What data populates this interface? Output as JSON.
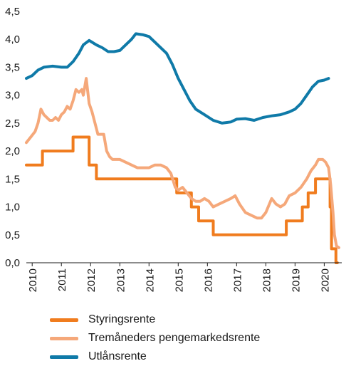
{
  "chart_data": {
    "type": "line",
    "title": "",
    "xlabel": "",
    "ylabel": "",
    "ylim": [
      0,
      4.5
    ],
    "xlim": [
      2009.8,
      2020.6
    ],
    "grid": false,
    "legend_position": "bottom",
    "y_ticks": [
      "0,0",
      "0,5",
      "1,0",
      "1,5",
      "2,0",
      "2,5",
      "3,0",
      "3,5",
      "4,0",
      "4,5"
    ],
    "x_ticks": [
      "2010",
      "2011",
      "2012",
      "2013",
      "2014",
      "2015",
      "2016",
      "2017",
      "2018",
      "2019",
      "2020"
    ],
    "series": [
      {
        "name": "Styringsrente",
        "color": "#f07c1e",
        "step": true,
        "points": [
          [
            2009.8,
            1.75
          ],
          [
            2010.35,
            2.0
          ],
          [
            2011.4,
            2.25
          ],
          [
            2011.95,
            1.75
          ],
          [
            2012.2,
            1.5
          ],
          [
            2014.95,
            1.25
          ],
          [
            2015.45,
            1.0
          ],
          [
            2015.7,
            0.75
          ],
          [
            2016.2,
            0.5
          ],
          [
            2018.7,
            0.75
          ],
          [
            2019.25,
            1.0
          ],
          [
            2019.45,
            1.25
          ],
          [
            2019.7,
            1.5
          ],
          [
            2020.2,
            1.0
          ],
          [
            2020.25,
            0.25
          ],
          [
            2020.4,
            0.0
          ],
          [
            2020.45,
            0.0
          ]
        ]
      },
      {
        "name": "Tremåneders pengemarkedsrente",
        "color": "#f5a87a",
        "step": false,
        "points": [
          [
            2009.8,
            2.15
          ],
          [
            2009.95,
            2.25
          ],
          [
            2010.1,
            2.35
          ],
          [
            2010.2,
            2.5
          ],
          [
            2010.3,
            2.75
          ],
          [
            2010.4,
            2.65
          ],
          [
            2010.5,
            2.6
          ],
          [
            2010.6,
            2.55
          ],
          [
            2010.7,
            2.55
          ],
          [
            2010.8,
            2.6
          ],
          [
            2010.9,
            2.55
          ],
          [
            2011.0,
            2.65
          ],
          [
            2011.1,
            2.7
          ],
          [
            2011.2,
            2.8
          ],
          [
            2011.3,
            2.75
          ],
          [
            2011.4,
            2.9
          ],
          [
            2011.5,
            3.1
          ],
          [
            2011.6,
            3.05
          ],
          [
            2011.7,
            3.1
          ],
          [
            2011.75,
            3.0
          ],
          [
            2011.85,
            3.3
          ],
          [
            2011.95,
            2.85
          ],
          [
            2012.05,
            2.7
          ],
          [
            2012.15,
            2.5
          ],
          [
            2012.25,
            2.3
          ],
          [
            2012.35,
            2.3
          ],
          [
            2012.45,
            2.3
          ],
          [
            2012.55,
            2.0
          ],
          [
            2012.65,
            1.9
          ],
          [
            2012.75,
            1.85
          ],
          [
            2012.85,
            1.85
          ],
          [
            2013.0,
            1.85
          ],
          [
            2013.2,
            1.8
          ],
          [
            2013.4,
            1.75
          ],
          [
            2013.6,
            1.7
          ],
          [
            2013.8,
            1.7
          ],
          [
            2014.0,
            1.7
          ],
          [
            2014.2,
            1.75
          ],
          [
            2014.4,
            1.75
          ],
          [
            2014.6,
            1.7
          ],
          [
            2014.75,
            1.6
          ],
          [
            2014.9,
            1.35
          ],
          [
            2015.0,
            1.3
          ],
          [
            2015.15,
            1.35
          ],
          [
            2015.3,
            1.25
          ],
          [
            2015.45,
            1.15
          ],
          [
            2015.6,
            1.1
          ],
          [
            2015.75,
            1.1
          ],
          [
            2015.9,
            1.15
          ],
          [
            2016.05,
            1.1
          ],
          [
            2016.2,
            1.0
          ],
          [
            2016.4,
            1.05
          ],
          [
            2016.6,
            1.1
          ],
          [
            2016.8,
            1.15
          ],
          [
            2016.95,
            1.2
          ],
          [
            2017.1,
            1.05
          ],
          [
            2017.3,
            0.9
          ],
          [
            2017.5,
            0.85
          ],
          [
            2017.7,
            0.8
          ],
          [
            2017.85,
            0.8
          ],
          [
            2018.0,
            0.9
          ],
          [
            2018.2,
            1.15
          ],
          [
            2018.35,
            1.05
          ],
          [
            2018.5,
            1.0
          ],
          [
            2018.65,
            1.05
          ],
          [
            2018.8,
            1.2
          ],
          [
            2019.0,
            1.25
          ],
          [
            2019.2,
            1.35
          ],
          [
            2019.4,
            1.5
          ],
          [
            2019.55,
            1.65
          ],
          [
            2019.7,
            1.75
          ],
          [
            2019.8,
            1.85
          ],
          [
            2019.95,
            1.85
          ],
          [
            2020.05,
            1.8
          ],
          [
            2020.15,
            1.7
          ],
          [
            2020.22,
            1.4
          ],
          [
            2020.3,
            0.9
          ],
          [
            2020.35,
            0.5
          ],
          [
            2020.42,
            0.3
          ],
          [
            2020.5,
            0.27
          ]
        ]
      },
      {
        "name": "Utlånsrente",
        "color": "#0f7aa8",
        "step": false,
        "points": [
          [
            2009.8,
            3.3
          ],
          [
            2010.0,
            3.35
          ],
          [
            2010.2,
            3.45
          ],
          [
            2010.4,
            3.5
          ],
          [
            2010.7,
            3.52
          ],
          [
            2011.0,
            3.5
          ],
          [
            2011.2,
            3.5
          ],
          [
            2011.4,
            3.6
          ],
          [
            2011.6,
            3.75
          ],
          [
            2011.75,
            3.9
          ],
          [
            2011.95,
            3.98
          ],
          [
            2012.2,
            3.9
          ],
          [
            2012.4,
            3.85
          ],
          [
            2012.6,
            3.78
          ],
          [
            2012.8,
            3.78
          ],
          [
            2013.0,
            3.8
          ],
          [
            2013.2,
            3.9
          ],
          [
            2013.4,
            4.0
          ],
          [
            2013.55,
            4.1
          ],
          [
            2013.8,
            4.08
          ],
          [
            2014.0,
            4.05
          ],
          [
            2014.3,
            3.9
          ],
          [
            2014.6,
            3.75
          ],
          [
            2014.8,
            3.55
          ],
          [
            2015.0,
            3.3
          ],
          [
            2015.2,
            3.1
          ],
          [
            2015.4,
            2.9
          ],
          [
            2015.6,
            2.75
          ],
          [
            2015.9,
            2.65
          ],
          [
            2016.2,
            2.55
          ],
          [
            2016.5,
            2.5
          ],
          [
            2016.8,
            2.52
          ],
          [
            2017.0,
            2.57
          ],
          [
            2017.3,
            2.58
          ],
          [
            2017.6,
            2.55
          ],
          [
            2017.9,
            2.6
          ],
          [
            2018.2,
            2.63
          ],
          [
            2018.5,
            2.65
          ],
          [
            2018.8,
            2.7
          ],
          [
            2019.0,
            2.75
          ],
          [
            2019.2,
            2.85
          ],
          [
            2019.4,
            3.0
          ],
          [
            2019.6,
            3.15
          ],
          [
            2019.8,
            3.25
          ],
          [
            2020.0,
            3.27
          ],
          [
            2020.15,
            3.3
          ]
        ]
      }
    ]
  }
}
